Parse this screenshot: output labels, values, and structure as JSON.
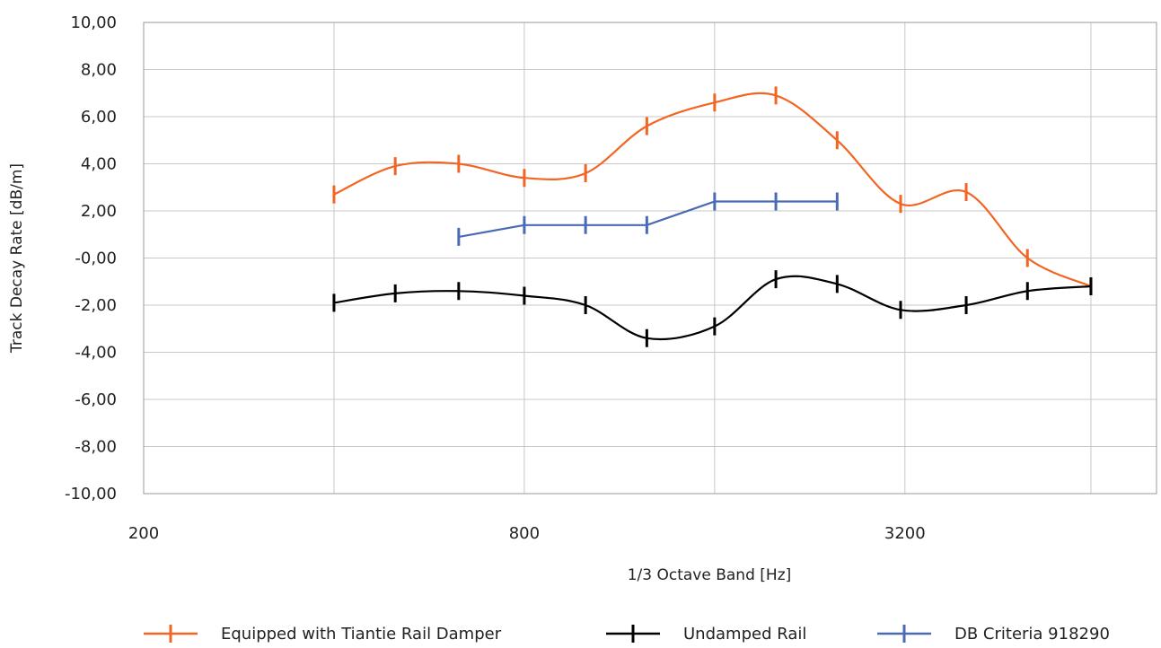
{
  "chart_data": {
    "type": "line",
    "xlabel": "1/3 Octave Band [Hz]",
    "ylabel": "Track Decay Rate [dB/m]",
    "x_scale": "log2",
    "x_domain": [
      200,
      8000
    ],
    "x_ticks": [
      200,
      800,
      3200
    ],
    "x_tick_labels": [
      "200",
      "800",
      "3200"
    ],
    "x_gridlines": [
      200,
      400,
      800,
      1600,
      3200,
      6300
    ],
    "ylim": [
      -10,
      10
    ],
    "y_ticks": [
      10,
      8,
      6,
      4,
      2,
      0,
      -2,
      -4,
      -6,
      -8,
      -10
    ],
    "y_tick_labels": [
      "10,00",
      "8,00",
      "6,00",
      "4,00",
      "2,00",
      "-0,00",
      "-2,00",
      "-4,00",
      "-6,00",
      "-8,00",
      "-10,00"
    ],
    "grid": true,
    "legend_position": "bottom",
    "series": [
      {
        "name": "Equipped with Tiantie Rail Damper",
        "color": "#f26522",
        "x": [
          400,
          500,
          630,
          800,
          1000,
          1250,
          1600,
          2000,
          2500,
          3150,
          4000,
          5000,
          6300
        ],
        "y": [
          2.7,
          3.9,
          4.0,
          3.4,
          3.6,
          5.6,
          6.6,
          6.9,
          5.0,
          2.3,
          2.8,
          0.0,
          -1.2
        ]
      },
      {
        "name": "Undamped Rail",
        "color": "#000000",
        "x": [
          400,
          500,
          630,
          800,
          1000,
          1250,
          1600,
          2000,
          2500,
          3150,
          4000,
          5000,
          6300
        ],
        "y": [
          -1.9,
          -1.5,
          -1.4,
          -1.6,
          -2.0,
          -3.4,
          -2.9,
          -0.9,
          -1.1,
          -2.2,
          -2.0,
          -1.4,
          -1.2
        ]
      },
      {
        "name": "DB Criteria 918290",
        "color": "#4a6ab5",
        "x": [
          630,
          800,
          1000,
          1250,
          1600,
          2000,
          2500
        ],
        "y": [
          0.9,
          1.4,
          1.4,
          1.4,
          2.4,
          2.4,
          2.4
        ]
      }
    ]
  }
}
